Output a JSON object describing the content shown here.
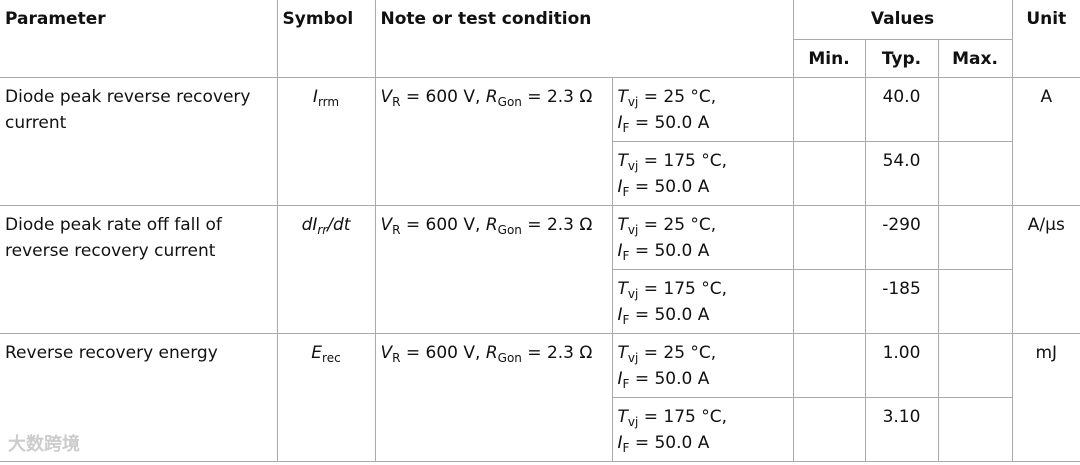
{
  "table": {
    "header": {
      "parameter": "Parameter",
      "symbol": "Symbol",
      "note": "Note or test condition",
      "values": "Values",
      "min": "Min.",
      "typ": "Typ.",
      "max": "Max.",
      "unit": "Unit"
    },
    "rows": [
      {
        "parameter": "Diode peak reverse recovery current",
        "symbol": [
          {
            "text": "I",
            "style": "italic"
          },
          {
            "text": "rrm",
            "style": "sub"
          }
        ],
        "note": [
          {
            "text": "V",
            "style": "italic"
          },
          {
            "text": "R",
            "style": "sub"
          },
          {
            "text": " = 600 V, ",
            "style": "plain"
          },
          {
            "text": "R",
            "style": "italic"
          },
          {
            "text": "Gon",
            "style": "sub"
          },
          {
            "text": " = 2.3 Ω",
            "style": "plain"
          }
        ],
        "unit": "A",
        "conditions": [
          {
            "lines": [
              [
                {
                  "text": "T",
                  "style": "italic"
                },
                {
                  "text": "vj",
                  "style": "sub"
                },
                {
                  "text": " = 25 °C,",
                  "style": "plain"
                }
              ],
              [
                {
                  "text": "I",
                  "style": "italic"
                },
                {
                  "text": "F",
                  "style": "sub"
                },
                {
                  "text": " = 50.0 A",
                  "style": "plain"
                }
              ]
            ],
            "typ": "40.0"
          },
          {
            "lines": [
              [
                {
                  "text": "T",
                  "style": "italic"
                },
                {
                  "text": "vj",
                  "style": "sub"
                },
                {
                  "text": " = 175 °C,",
                  "style": "plain"
                }
              ],
              [
                {
                  "text": "I",
                  "style": "italic"
                },
                {
                  "text": "F",
                  "style": "sub"
                },
                {
                  "text": " = 50.0 A",
                  "style": "plain"
                }
              ]
            ],
            "typ": "54.0"
          }
        ]
      },
      {
        "parameter": "Diode peak rate off fall of reverse recovery current",
        "symbol": [
          {
            "text": "dI",
            "style": "italic"
          },
          {
            "text": "rr",
            "style": "italic-sub"
          },
          {
            "text": "/dt",
            "style": "italic"
          }
        ],
        "note": [
          {
            "text": "V",
            "style": "italic"
          },
          {
            "text": "R",
            "style": "sub"
          },
          {
            "text": " = 600 V, ",
            "style": "plain"
          },
          {
            "text": "R",
            "style": "italic"
          },
          {
            "text": "Gon",
            "style": "sub"
          },
          {
            "text": " = 2.3 Ω",
            "style": "plain"
          }
        ],
        "unit": "A/µs",
        "conditions": [
          {
            "lines": [
              [
                {
                  "text": "T",
                  "style": "italic"
                },
                {
                  "text": "vj",
                  "style": "sub"
                },
                {
                  "text": " = 25 °C,",
                  "style": "plain"
                }
              ],
              [
                {
                  "text": "I",
                  "style": "italic"
                },
                {
                  "text": "F",
                  "style": "sub"
                },
                {
                  "text": " = 50.0 A",
                  "style": "plain"
                }
              ]
            ],
            "typ": "-290"
          },
          {
            "lines": [
              [
                {
                  "text": "T",
                  "style": "italic"
                },
                {
                  "text": "vj",
                  "style": "sub"
                },
                {
                  "text": " = 175 °C,",
                  "style": "plain"
                }
              ],
              [
                {
                  "text": "I",
                  "style": "italic"
                },
                {
                  "text": "F",
                  "style": "sub"
                },
                {
                  "text": " = 50.0 A",
                  "style": "plain"
                }
              ]
            ],
            "typ": "-185"
          }
        ]
      },
      {
        "parameter": "Reverse recovery energy",
        "symbol": [
          {
            "text": "E",
            "style": "italic"
          },
          {
            "text": "rec",
            "style": "sub"
          }
        ],
        "note": [
          {
            "text": "V",
            "style": "italic"
          },
          {
            "text": "R",
            "style": "sub"
          },
          {
            "text": " = 600 V, ",
            "style": "plain"
          },
          {
            "text": "R",
            "style": "italic"
          },
          {
            "text": "Gon",
            "style": "sub"
          },
          {
            "text": " = 2.3 Ω",
            "style": "plain"
          }
        ],
        "unit": "mJ",
        "conditions": [
          {
            "lines": [
              [
                {
                  "text": "T",
                  "style": "italic"
                },
                {
                  "text": "vj",
                  "style": "sub"
                },
                {
                  "text": " = 25 °C,",
                  "style": "plain"
                }
              ],
              [
                {
                  "text": "I",
                  "style": "italic"
                },
                {
                  "text": "F",
                  "style": "sub"
                },
                {
                  "text": " = 50.0 A",
                  "style": "plain"
                }
              ]
            ],
            "typ": "1.00"
          },
          {
            "lines": [
              [
                {
                  "text": "T",
                  "style": "italic"
                },
                {
                  "text": "vj",
                  "style": "sub"
                },
                {
                  "text": " = 175 °C,",
                  "style": "plain"
                }
              ],
              [
                {
                  "text": "I",
                  "style": "italic"
                },
                {
                  "text": "F",
                  "style": "sub"
                },
                {
                  "text": " = 50.0 A",
                  "style": "plain"
                }
              ]
            ],
            "typ": "3.10"
          }
        ]
      }
    ]
  },
  "watermark": "大数跨境"
}
